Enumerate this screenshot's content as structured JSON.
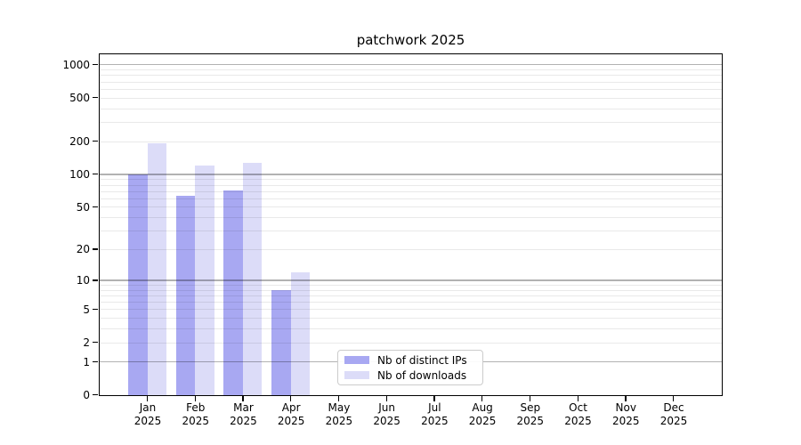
{
  "chart_data": {
    "type": "bar",
    "title": "patchwork 2025",
    "categories": [
      "Jan",
      "Feb",
      "Mar",
      "Apr",
      "May",
      "Jun",
      "Jul",
      "Aug",
      "Sep",
      "Oct",
      "Nov",
      "Dec"
    ],
    "category_year": "2025",
    "series": [
      {
        "name": "Nb of distinct IPs",
        "color": "#a8a8f2",
        "values": [
          100,
          63,
          71,
          8,
          null,
          null,
          null,
          null,
          null,
          null,
          null,
          null
        ]
      },
      {
        "name": "Nb of downloads",
        "color": "#dcdcf8",
        "values": [
          193,
          121,
          128,
          12,
          null,
          null,
          null,
          null,
          null,
          null,
          null,
          null
        ]
      }
    ],
    "xlabel": "",
    "ylabel": "",
    "yscale": "log1p",
    "yticks": [
      0,
      1,
      2,
      5,
      10,
      20,
      50,
      100,
      200,
      500,
      1000
    ],
    "ylim": [
      0,
      1250
    ],
    "grid": {
      "on": true,
      "major_lines": [
        1,
        10,
        100,
        1000
      ],
      "minor_multipliers": [
        2,
        3,
        4,
        5,
        6,
        7,
        8,
        9
      ],
      "minor_decades": [
        1,
        10,
        100
      ]
    },
    "legend": {
      "position": "lower center-right",
      "entries": [
        "Nb of distinct IPs",
        "Nb of downloads"
      ]
    }
  },
  "colors": {
    "background": "#ffffff",
    "axis": "#000000",
    "major_grid": "rgba(0,0,0,0.30)",
    "minor_grid": "rgba(0,0,0,0.085)",
    "series_1": "#a8a8f2",
    "series_2": "#dcdcf8",
    "legend_border": "#cccccc"
  }
}
